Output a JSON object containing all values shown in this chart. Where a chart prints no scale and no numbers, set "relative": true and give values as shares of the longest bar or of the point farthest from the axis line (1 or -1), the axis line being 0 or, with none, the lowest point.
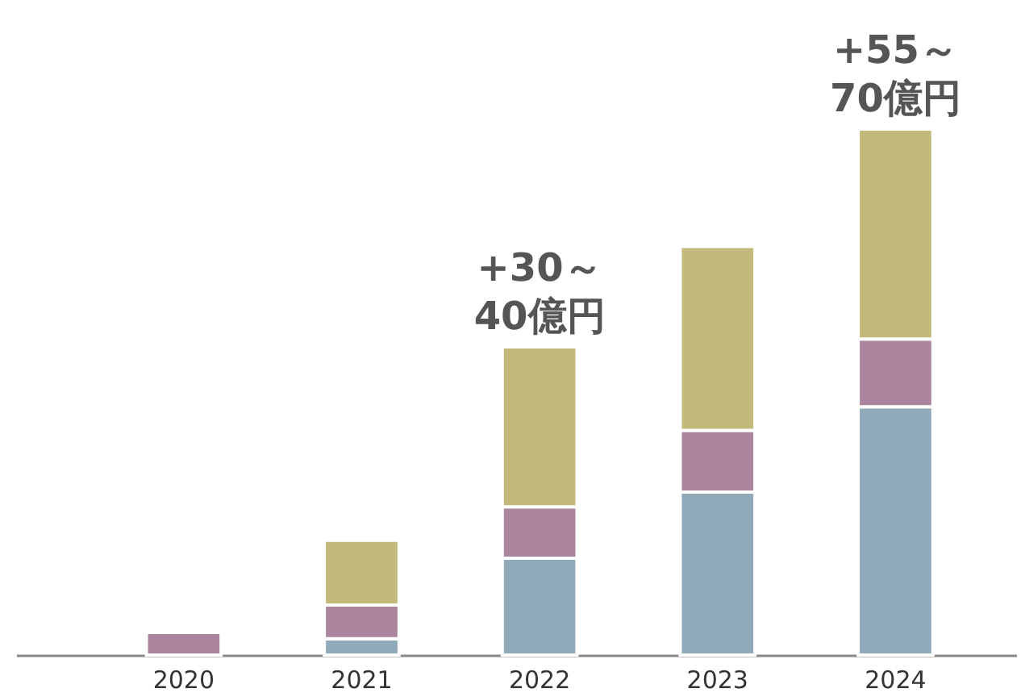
{
  "chart_data": {
    "type": "bar",
    "stacked": true,
    "relative": true,
    "categories": [
      "2020",
      "2021",
      "2022",
      "2023",
      "2024"
    ],
    "series": [
      {
        "color": "#91aab9",
        "values": [
          null,
          0.031,
          0.184,
          0.31,
          0.472
        ]
      },
      {
        "color": "#ab859e",
        "values": [
          0.043,
          0.064,
          0.098,
          0.117,
          0.129
        ]
      },
      {
        "color": "#c2b97a",
        "values": [
          null,
          0.123,
          0.304,
          0.35,
          0.399
        ]
      }
    ],
    "annotations": [
      {
        "text": "+30～\n40億円",
        "x": "2022",
        "y": 0.586
      },
      {
        "text": "+55～\n70億円",
        "x": "2024",
        "y": 1
      }
    ]
  }
}
